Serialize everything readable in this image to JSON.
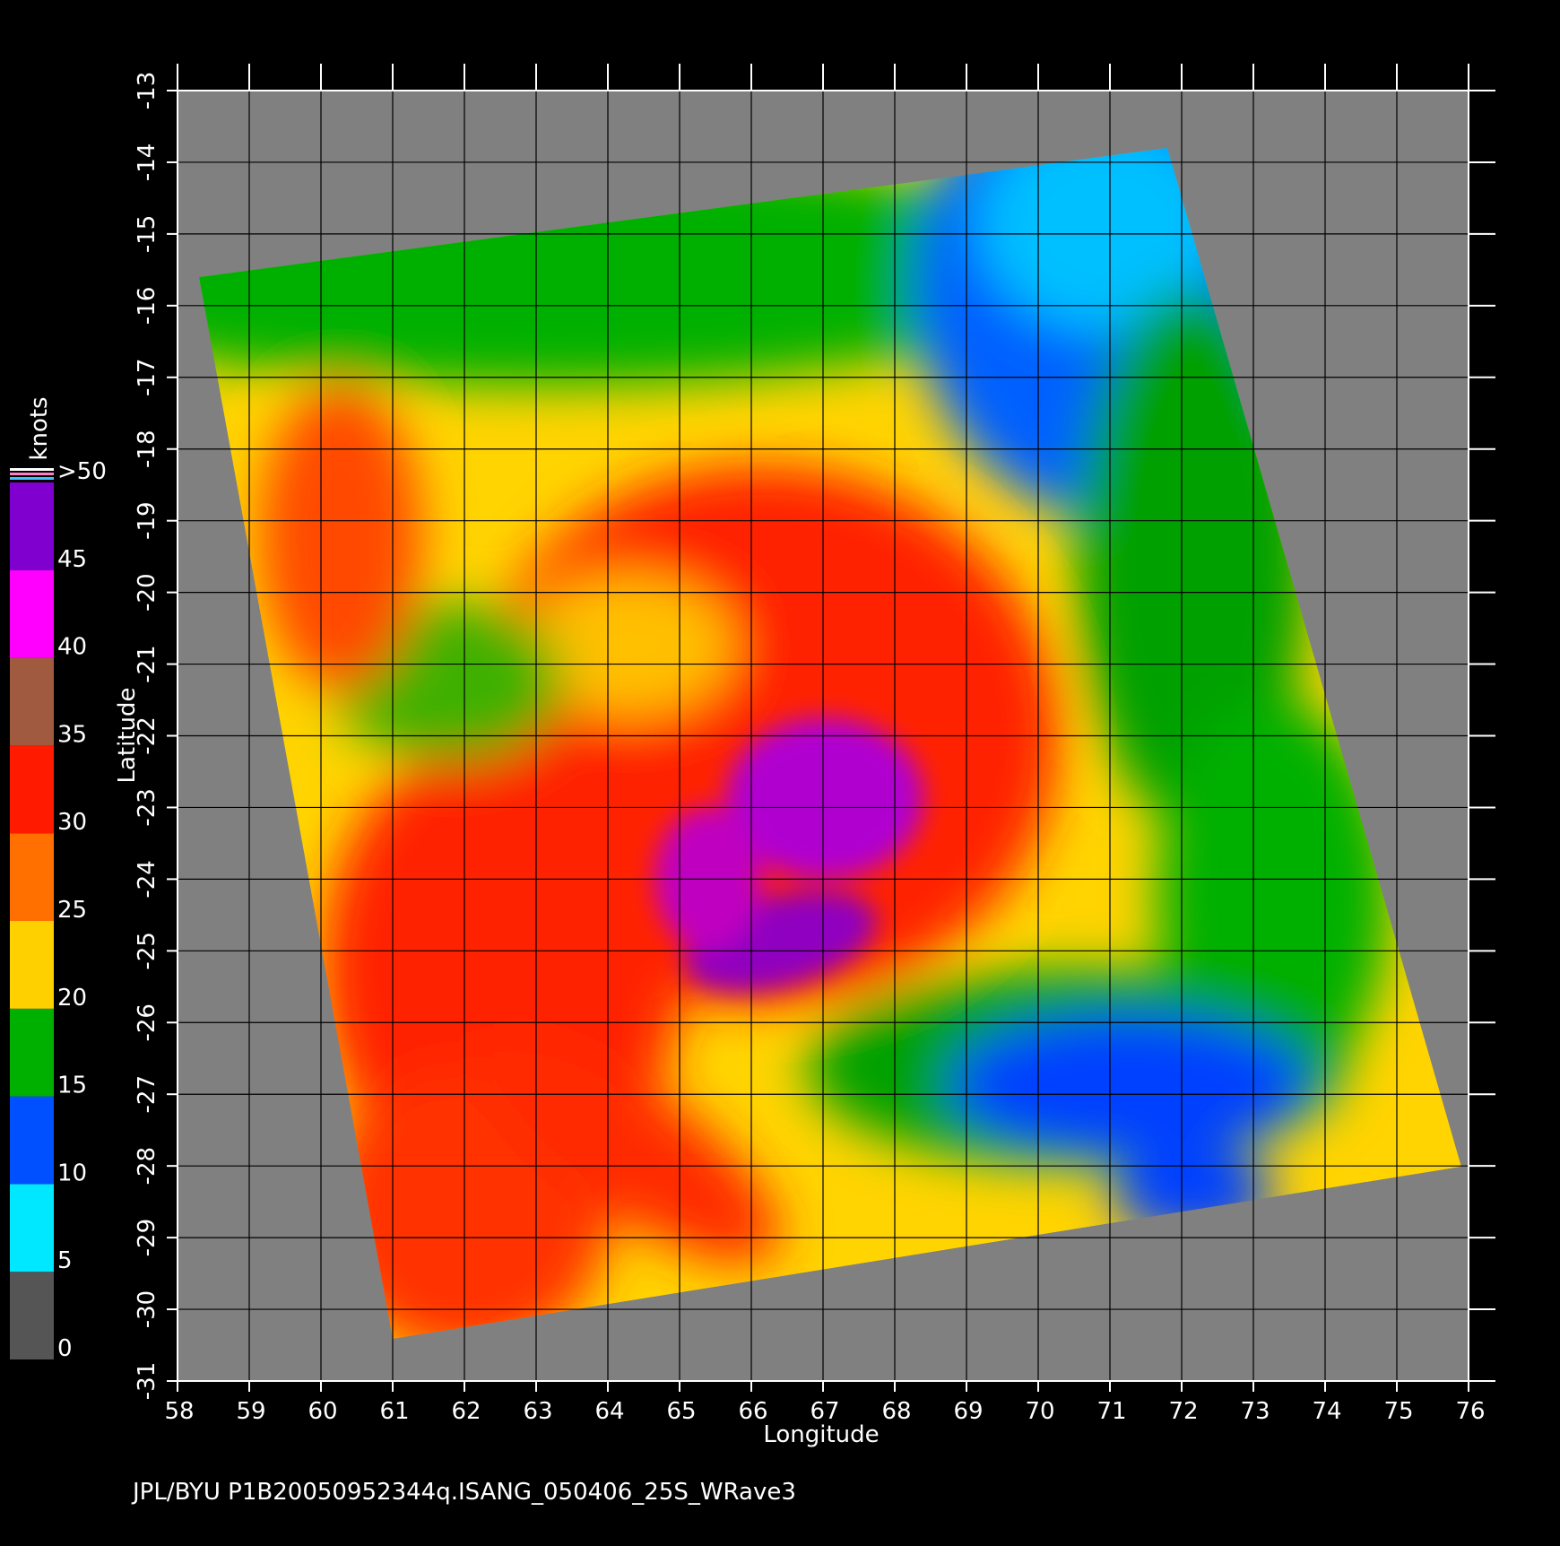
{
  "map": {
    "xlabel": "Longitude",
    "ylabel": "Latitude",
    "xlim": [
      58,
      76
    ],
    "ylim": [
      -13,
      -31
    ],
    "xticks": [
      58,
      59,
      60,
      61,
      62,
      63,
      64,
      65,
      66,
      67,
      68,
      69,
      70,
      71,
      72,
      73,
      74,
      75,
      76
    ],
    "yticks": [
      -13,
      -14,
      -15,
      -16,
      -17,
      -18,
      -19,
      -20,
      -21,
      -22,
      -23,
      -24,
      -25,
      -26,
      -27,
      -28,
      -29,
      -30,
      -31
    ],
    "grid": true,
    "colorbar": {
      "label": "knots",
      "lim": [
        0,
        50
      ],
      "ticks": [
        0,
        5,
        10,
        15,
        20,
        25,
        30,
        35,
        40,
        45,
        {
          "value": 50,
          "label": ">50"
        }
      ],
      "colors": [
        "#555555",
        "#00e8ff",
        "#0050ff",
        "#00b000",
        "#ffd000",
        "#ff7000",
        "#ff1a00",
        "#a05a40",
        "#ff00ff",
        "#8000d0"
      ]
    },
    "footer": "JPL/BYU  P1B20050952344q.ISANG_050406_25S_WRave3"
  }
}
